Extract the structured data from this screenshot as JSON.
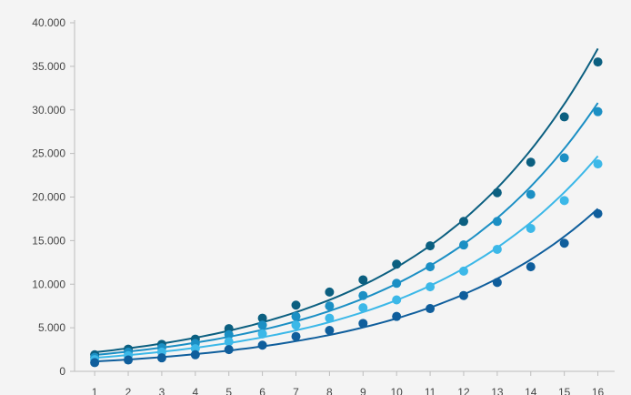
{
  "chart_data": {
    "type": "line",
    "title": "",
    "xlabel": "",
    "ylabel": "",
    "x": [
      1,
      2,
      3,
      4,
      5,
      6,
      7,
      8,
      9,
      10,
      11,
      12,
      13,
      14,
      15,
      16
    ],
    "x_tick_labels": [
      "1",
      "2",
      "3",
      "4",
      "5",
      "6",
      "7",
      "8",
      "9",
      "10",
      "11",
      "12",
      "13",
      "14",
      "15",
      "16"
    ],
    "y_ticks": [
      0,
      5000,
      10000,
      15000,
      20000,
      25000,
      30000,
      35000,
      40000
    ],
    "y_tick_labels": [
      "0",
      "5.000",
      "10.000",
      "15.000",
      "20.000",
      "25.000",
      "30.000",
      "35.000",
      "40.000"
    ],
    "ylim": [
      0,
      40000
    ],
    "grid": false,
    "legend": "none",
    "markers": "filled-circles",
    "fit_lines": true,
    "series": [
      {
        "color": "#0b5f80",
        "values": [
          1900,
          2550,
          3100,
          3700,
          4900,
          6100,
          7600,
          9100,
          10500,
          12300,
          14400,
          17200,
          20500,
          24000,
          29200,
          35500
        ]
      },
      {
        "color": "#1b8fc4",
        "values": [
          1600,
          2200,
          2700,
          3200,
          4200,
          5300,
          6300,
          7500,
          8700,
          10100,
          12000,
          14500,
          17200,
          20300,
          24500,
          29800
        ]
      },
      {
        "color": "#3cb8e8",
        "values": [
          1350,
          1800,
          2200,
          2600,
          3400,
          4300,
          5300,
          6100,
          7300,
          8200,
          9700,
          11500,
          14000,
          16400,
          19600,
          23800
        ]
      },
      {
        "color": "#0f5e9c",
        "values": [
          1000,
          1300,
          1550,
          1900,
          2500,
          3000,
          4000,
          4700,
          5500,
          6300,
          7200,
          8700,
          10200,
          12000,
          14700,
          18100
        ]
      }
    ]
  }
}
